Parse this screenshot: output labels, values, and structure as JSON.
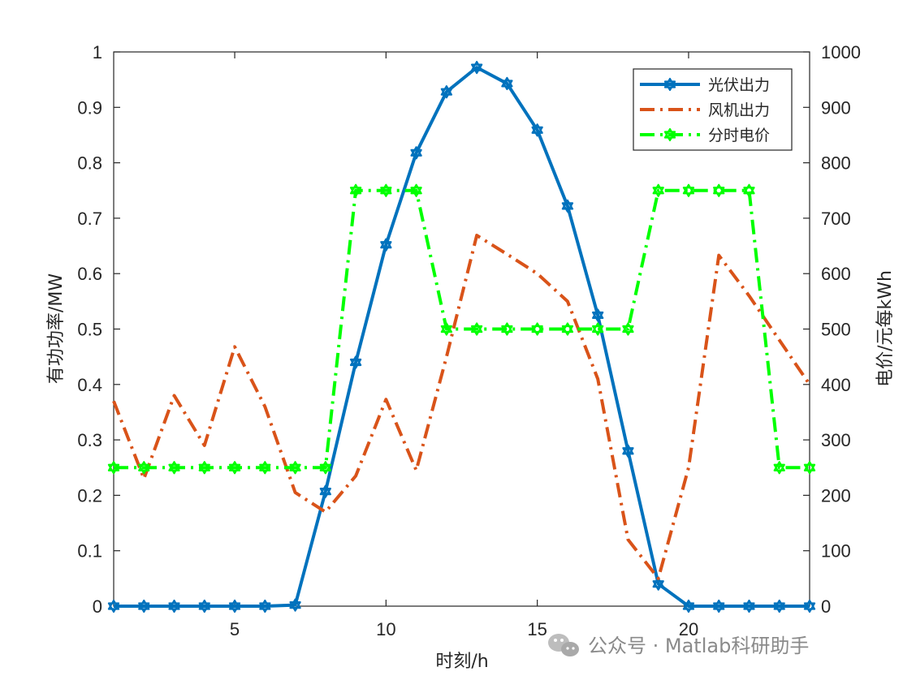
{
  "chart_data": {
    "type": "line",
    "title": "",
    "xlabel": "时刻/h",
    "ylabel_left": "有功功率/MW",
    "ylabel_right": "电价/元每kWh",
    "xlim": [
      1,
      24
    ],
    "ylim_left": [
      0,
      1
    ],
    "ylim_right": [
      0,
      1000
    ],
    "x_ticks": [
      5,
      10,
      15,
      20
    ],
    "y_left_ticks": [
      0,
      0.1,
      0.2,
      0.3,
      0.4,
      0.5,
      0.6,
      0.7,
      0.8,
      0.9,
      1
    ],
    "y_right_ticks": [
      0,
      100,
      200,
      300,
      400,
      500,
      600,
      700,
      800,
      900,
      1000
    ],
    "grid": false,
    "legend_position": "top-right",
    "x": [
      1,
      2,
      3,
      4,
      5,
      6,
      7,
      8,
      9,
      10,
      11,
      12,
      13,
      14,
      15,
      16,
      17,
      18,
      19,
      20,
      21,
      22,
      23,
      24
    ],
    "series": [
      {
        "name": "光伏出力",
        "axis": "left",
        "color": "#0072BD",
        "line_style": "solid",
        "marker": "hexagram",
        "values": [
          0,
          0,
          0,
          0,
          0,
          0,
          0.002,
          0.207,
          0.44,
          0.652,
          0.818,
          0.928,
          0.972,
          0.943,
          0.859,
          0.722,
          0.525,
          0.28,
          0.04,
          0,
          0,
          0,
          0,
          0
        ]
      },
      {
        "name": "风机出力",
        "axis": "left",
        "color": "#D95319",
        "line_style": "dashdot",
        "marker": "none",
        "values": [
          0.37,
          0.23,
          0.38,
          0.29,
          0.468,
          0.36,
          0.205,
          0.17,
          0.235,
          0.373,
          0.245,
          0.45,
          0.669,
          0.635,
          0.6,
          0.55,
          0.41,
          0.12,
          0.05,
          0.25,
          0.633,
          0.56,
          0.48,
          0.4
        ]
      },
      {
        "name": "分时电价",
        "axis": "right",
        "color": "#00FF00",
        "line_style": "dashdot",
        "marker": "hexagram",
        "values": [
          250,
          250,
          250,
          250,
          250,
          250,
          250,
          250,
          750,
          750,
          750,
          500,
          500,
          500,
          500,
          500,
          500,
          500,
          750,
          750,
          750,
          750,
          250,
          250
        ]
      }
    ]
  },
  "watermark": {
    "icon": "wechat-icon",
    "text": "公众号 · Matlab科研助手"
  }
}
